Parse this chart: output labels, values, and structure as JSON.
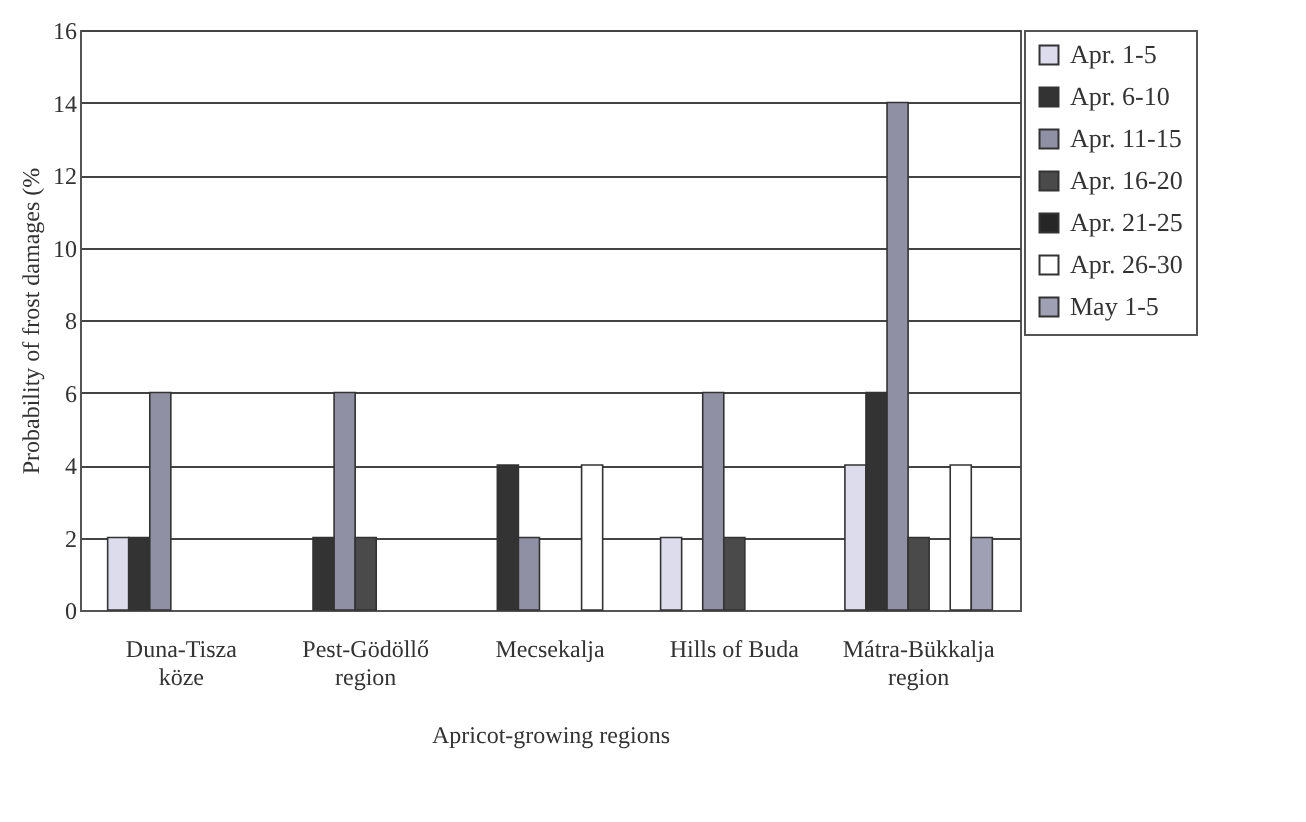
{
  "chart_data": {
    "type": "bar",
    "xlabel": "Apricot-growing regions",
    "ylabel": "Probability of frost damages (%",
    "categories": [
      "Duna-Tisza köze",
      "Pest-Gödöllő region",
      "Mecsekalja",
      "Hills of Buda",
      "Mátra-Bükkalja region"
    ],
    "series": [
      {
        "name": "Apr. 1-5",
        "color": "#dcdcec",
        "values": [
          2,
          null,
          null,
          2,
          4
        ]
      },
      {
        "name": "Apr. 6-10",
        "color": "#333333",
        "values": [
          2,
          2,
          4,
          null,
          6
        ]
      },
      {
        "name": "Apr. 11-15",
        "color": "#9090a4",
        "values": [
          6,
          6,
          2,
          6,
          14
        ]
      },
      {
        "name": "Apr. 16-20",
        "color": "#4a4a4a",
        "values": [
          null,
          2,
          null,
          2,
          2
        ]
      },
      {
        "name": "Apr. 21-25",
        "color": "#262626",
        "values": [
          null,
          null,
          null,
          null,
          null
        ]
      },
      {
        "name": "Apr. 26-30",
        "color": "#ffffff",
        "values": [
          null,
          null,
          4,
          null,
          4
        ]
      },
      {
        "name": "May 1-5",
        "color": "#a0a0b4",
        "values": [
          null,
          null,
          null,
          null,
          2
        ]
      }
    ],
    "ylim": [
      0,
      16
    ],
    "yticks": [
      0,
      2,
      4,
      6,
      8,
      10,
      12,
      14,
      16
    ],
    "grid": "y",
    "legend": "right"
  }
}
